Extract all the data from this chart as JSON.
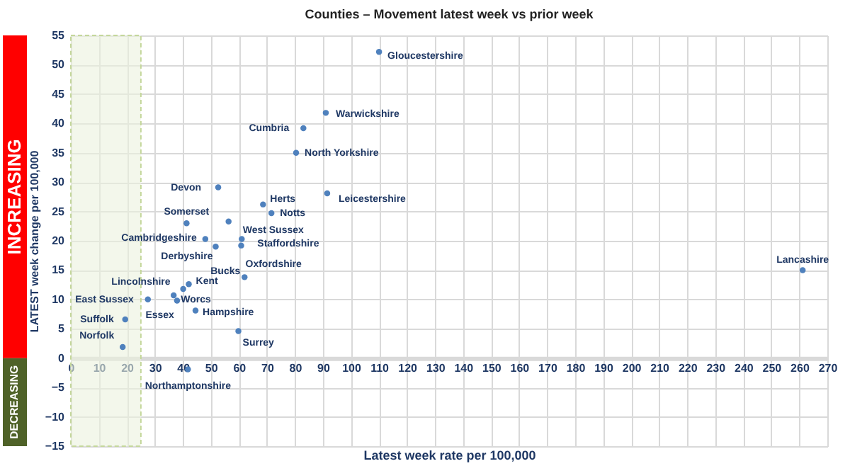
{
  "chart_data": {
    "type": "scatter",
    "title": "Counties – Movement latest week vs prior week",
    "xlabel": "Latest week rate per 100,000",
    "ylabel": "LATEST week change per 100,000",
    "x": [
      110,
      91,
      83,
      80.4,
      91.5,
      68.6,
      71.6,
      56.3,
      52.6,
      41.3,
      48,
      61,
      60.8,
      51.7,
      62,
      42.1,
      40.1,
      36.7,
      37.9,
      27.5,
      44.5,
      19.4,
      59.8,
      18.5,
      41.8,
      261.2
    ],
    "series": [
      {
        "color": "#4f81bd",
        "values": [
          52.2,
          41.8,
          39.2,
          35,
          28.1,
          26.2,
          24.7,
          23.3,
          29.1,
          23,
          20.3,
          20.3,
          19.2,
          19,
          13.8,
          12.6,
          11.8,
          10.7,
          9.8,
          10,
          8.1,
          6.6,
          4.6,
          1.9,
          -1.9,
          15
        ]
      }
    ],
    "xlim": [
      0,
      270
    ],
    "xticks": [
      0,
      10,
      20,
      30,
      40,
      50,
      60,
      70,
      80,
      90,
      100,
      110,
      120,
      130,
      140,
      150,
      160,
      170,
      180,
      190,
      200,
      210,
      220,
      230,
      240,
      250,
      260,
      270
    ],
    "ylim": [
      -15,
      55
    ],
    "yticks": [
      -15,
      -10,
      -5,
      0,
      5,
      10,
      15,
      20,
      25,
      30,
      35,
      40,
      45,
      50,
      55
    ],
    "grid": true,
    "marker": "circle",
    "bands": [
      {
        "axis": "x",
        "from": 0,
        "to": 25,
        "color": "#ebf1de"
      }
    ],
    "annotations": [
      {
        "text": "Gloucestershire",
        "x": 110,
        "y": 52.2
      },
      {
        "text": "Warwickshire",
        "x": 91,
        "y": 41.8
      },
      {
        "text": "Cumbria",
        "x": 83,
        "y": 39.2
      },
      {
        "text": "North Yorkshire",
        "x": 80.4,
        "y": 35
      },
      {
        "text": "Leicestershire",
        "x": 91.5,
        "y": 28.1
      },
      {
        "text": "Herts",
        "x": 68.6,
        "y": 26.2
      },
      {
        "text": "Notts",
        "x": 71.6,
        "y": 24.7
      },
      {
        "text": "West Sussex",
        "x": 56.3,
        "y": 23.3
      },
      {
        "text": "Devon",
        "x": 52.6,
        "y": 29.1
      },
      {
        "text": "Somerset",
        "x": 41.3,
        "y": 23
      },
      {
        "text": "Cambridgeshire",
        "x": 48,
        "y": 20.3
      },
      {
        "text": "Staffordshire",
        "x": 61,
        "y": 20.3
      },
      {
        "text": "Oxfordshire",
        "x": 60.8,
        "y": 19.2
      },
      {
        "text": "Derbyshire",
        "x": 51.7,
        "y": 19
      },
      {
        "text": "Bucks",
        "x": 62,
        "y": 13.8
      },
      {
        "text": "Kent",
        "x": 42.1,
        "y": 12.6
      },
      {
        "text": "Lincolnshire",
        "x": 40.1,
        "y": 11.8
      },
      {
        "text": "Worcs",
        "x": 36.7,
        "y": 10.7
      },
      {
        "text": "Essex",
        "x": 37.9,
        "y": 9.8
      },
      {
        "text": "East Sussex",
        "x": 27.5,
        "y": 10
      },
      {
        "text": "Hampshire",
        "x": 44.5,
        "y": 8.1
      },
      {
        "text": "Suffolk",
        "x": 19.4,
        "y": 6.6
      },
      {
        "text": "Surrey",
        "x": 59.8,
        "y": 4.6
      },
      {
        "text": "Norfolk",
        "x": 18.5,
        "y": 1.9
      },
      {
        "text": "Northamptonshire",
        "x": 41.8,
        "y": -1.9
      },
      {
        "text": "Lancashire",
        "x": 261.2,
        "y": 15
      },
      "INCREASING",
      "DECREASING"
    ]
  }
}
